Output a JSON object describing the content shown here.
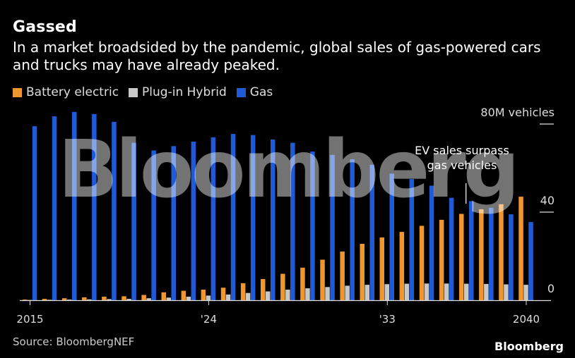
{
  "header": {
    "title": "Gassed",
    "subtitle": "In a market broadsided by the pandemic, global sales of gas-powered cars and trucks may have already peaked."
  },
  "legend": {
    "items": [
      {
        "label": "Battery electric",
        "color": "#f0962f"
      },
      {
        "label": "Plug-in Hybrid",
        "color": "#c8c8c8"
      },
      {
        "label": "Gas",
        "color": "#1f5bd6"
      }
    ]
  },
  "source": "Source: BloombergNEF",
  "brand": "Bloomberg",
  "watermark": "Bloomberg",
  "chart_data": {
    "type": "bar",
    "categories": [
      "2015",
      "2016",
      "2017",
      "2018",
      "2019",
      "2020",
      "2021",
      "2022",
      "2023",
      "2024",
      "2025",
      "2026",
      "2027",
      "2028",
      "2029",
      "2030",
      "2031",
      "2032",
      "2033",
      "2034",
      "2035",
      "2036",
      "2037",
      "2038",
      "2039",
      "2040"
    ],
    "x_tick_labels": [
      {
        "label": "2015",
        "index": 0
      },
      {
        "label": "'24",
        "index": 9
      },
      {
        "label": "'33",
        "index": 18
      },
      {
        "label": "2040",
        "index": 25
      }
    ],
    "y_ticks": [
      {
        "value": 80,
        "label": "80M vehicles"
      },
      {
        "value": 40,
        "label": "40"
      },
      {
        "value": 0,
        "label": "0"
      }
    ],
    "ylim": [
      0,
      80
    ],
    "grid": false,
    "legend_position": "top-left",
    "series": [
      {
        "name": "Battery electric",
        "color": "#f0962f",
        "values": [
          0.3,
          0.6,
          0.9,
          1.3,
          1.6,
          1.8,
          2.4,
          3.6,
          4.3,
          4.8,
          5.7,
          7.7,
          9.6,
          12.0,
          14.8,
          18.4,
          22.1,
          25.6,
          28.5,
          31.0,
          33.8,
          36.5,
          39.2,
          41.3,
          43.6,
          47.0
        ]
      },
      {
        "name": "Plug-in Hybrid",
        "color": "#c8c8c8",
        "values": [
          0.1,
          0.2,
          0.3,
          0.4,
          0.5,
          0.6,
          0.9,
          1.2,
          1.6,
          2.1,
          2.6,
          3.3,
          4.0,
          4.8,
          5.4,
          6.0,
          6.6,
          7.0,
          7.3,
          7.5,
          7.6,
          7.6,
          7.5,
          7.4,
          7.2,
          7.0
        ]
      },
      {
        "name": "Gas",
        "color": "#1f5bd6",
        "values": [
          79.0,
          83.5,
          85.5,
          84.5,
          81.0,
          71.5,
          68.0,
          70.0,
          72.0,
          74.0,
          75.5,
          75.0,
          73.0,
          71.5,
          67.5,
          66.0,
          64.0,
          61.5,
          57.5,
          55.0,
          52.0,
          46.5,
          45.0,
          42.0,
          39.0,
          35.5
        ]
      }
    ],
    "annotation": {
      "text_line1": "EV sales surpass",
      "text_line2": "gas vehicles",
      "index": 22
    }
  }
}
